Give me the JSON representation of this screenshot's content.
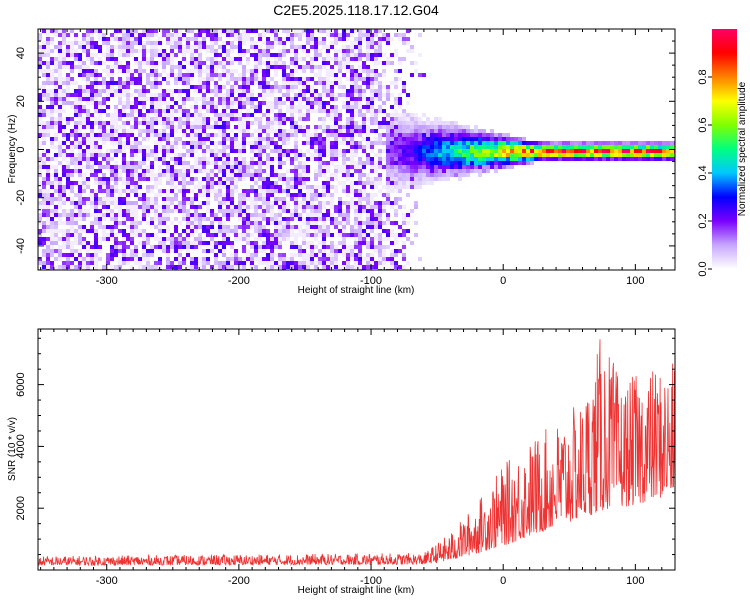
{
  "figure": {
    "title": "C2E5.2025.118.17.12.G04"
  },
  "chart_data": [
    {
      "type": "heatmap",
      "xlabel": "Height of straight line (km)",
      "ylabel": "Frequency (Hz)",
      "xlim": [
        -352,
        130
      ],
      "ylim": [
        -50,
        50
      ],
      "x_ticks": [
        -300,
        -200,
        -100,
        0,
        100
      ],
      "y_ticks": [
        -40,
        -20,
        0,
        20,
        40
      ],
      "colorbar": {
        "label": "Normalized spectral amplitude",
        "range": [
          0,
          1
        ],
        "ticks": [
          0.0,
          0.2,
          0.4,
          0.6,
          0.8
        ],
        "colormap": [
          "#ffffff",
          "#c7a6ff",
          "#7a00ff",
          "#0000ff",
          "#00c8ff",
          "#00ff80",
          "#80ff00",
          "#ffff00",
          "#ff8000",
          "#ff0000",
          "#ff0066"
        ]
      },
      "signal": {
        "noise_region_x": [
          -352,
          -60
        ],
        "noise_amplitude": [
          0.05,
          0.2
        ],
        "carrier_x": [
          -90,
          130
        ],
        "carrier_frequency": 0,
        "carrier_amplitude_start": 0.15,
        "carrier_amplitude_end": 0.95
      },
      "grid": false
    },
    {
      "type": "line",
      "xlabel": "Height of straight line (km)",
      "ylabel": "SNR (10 * v/v)",
      "xlim": [
        -352,
        130
      ],
      "ylim": [
        0,
        7800
      ],
      "x_ticks": [
        -300,
        -200,
        -100,
        0,
        100
      ],
      "y_ticks": [
        2000,
        4000,
        6000
      ],
      "series": [
        {
          "color": "#ee3333",
          "baseline_points": [
            {
              "x": -352,
              "y": 250
            },
            {
              "x": -60,
              "y": 300
            },
            {
              "x": -40,
              "y": 500
            },
            {
              "x": -20,
              "y": 900
            },
            {
              "x": 0,
              "y": 1300
            },
            {
              "x": 20,
              "y": 1800
            },
            {
              "x": 40,
              "y": 2300
            },
            {
              "x": 60,
              "y": 2800
            },
            {
              "x": 80,
              "y": 3300
            },
            {
              "x": 100,
              "y": 3500
            },
            {
              "x": 120,
              "y": 3900
            },
            {
              "x": 130,
              "y": 4100
            }
          ],
          "peak_points": [
            {
              "x": -352,
              "y": 450
            },
            {
              "x": -60,
              "y": 550
            },
            {
              "x": -40,
              "y": 1200
            },
            {
              "x": -20,
              "y": 2200
            },
            {
              "x": 0,
              "y": 3400
            },
            {
              "x": 20,
              "y": 4200
            },
            {
              "x": 40,
              "y": 4800
            },
            {
              "x": 60,
              "y": 5500
            },
            {
              "x": 75,
              "y": 7800
            },
            {
              "x": 90,
              "y": 6000
            },
            {
              "x": 105,
              "y": 6500
            },
            {
              "x": 130,
              "y": 6700
            }
          ]
        }
      ],
      "grid": false
    }
  ]
}
